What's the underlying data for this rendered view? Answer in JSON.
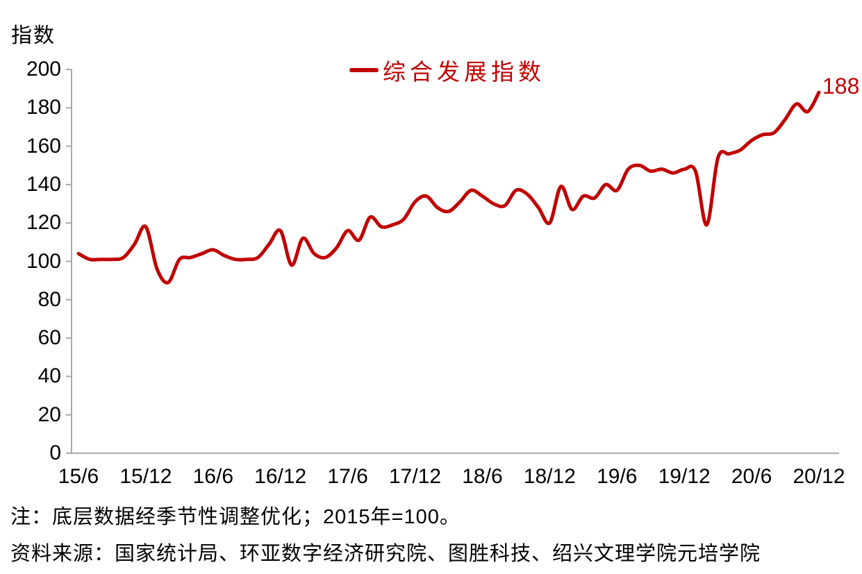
{
  "page": {
    "note": "注：底层数据经季节性调整优化；2015年=100。",
    "source": "资料来源：国家统计局、环亚数字经济研究院、图胜科技、绍兴文理学院元培学院"
  },
  "chart_data": {
    "type": "line",
    "title": "",
    "ylabel": "指数",
    "xlabel": "",
    "ylim": [
      0,
      200
    ],
    "ytick_step": 20,
    "yticks": [
      0,
      20,
      40,
      60,
      80,
      100,
      120,
      140,
      160,
      180,
      200
    ],
    "grid": false,
    "legend_position": "top-center",
    "x_tick_labels": [
      "15/6",
      "15/12",
      "16/6",
      "16/12",
      "17/6",
      "17/12",
      "18/6",
      "18/12",
      "19/6",
      "19/12",
      "20/6",
      "20/12"
    ],
    "x": [
      "15/6",
      "15/7",
      "15/8",
      "15/9",
      "15/10",
      "15/11",
      "15/12",
      "16/1",
      "16/2",
      "16/3",
      "16/4",
      "16/5",
      "16/6",
      "16/7",
      "16/8",
      "16/9",
      "16/10",
      "16/11",
      "16/12",
      "17/1",
      "17/2",
      "17/3",
      "17/4",
      "17/5",
      "17/6",
      "17/7",
      "17/8",
      "17/9",
      "17/10",
      "17/11",
      "17/12",
      "18/1",
      "18/2",
      "18/3",
      "18/4",
      "18/5",
      "18/6",
      "18/7",
      "18/8",
      "18/9",
      "18/10",
      "18/11",
      "18/12",
      "19/1",
      "19/2",
      "19/3",
      "19/4",
      "19/5",
      "19/6",
      "19/7",
      "19/8",
      "19/9",
      "19/10",
      "19/11",
      "19/12",
      "20/1",
      "20/2",
      "20/3",
      "20/4",
      "20/5",
      "20/6",
      "20/7",
      "20/8",
      "20/9",
      "20/10",
      "20/11",
      "20/12"
    ],
    "series": [
      {
        "name": "综合发展指数",
        "color": "#C00000",
        "values": [
          104,
          101,
          101,
          101,
          102,
          109,
          118,
          96,
          89,
          101,
          102,
          104,
          106,
          103,
          101,
          101,
          102,
          109,
          116,
          98,
          112,
          104,
          102,
          107,
          116,
          111,
          123,
          118,
          119,
          122,
          131,
          134,
          128,
          126,
          131,
          137,
          134,
          130,
          129,
          137,
          135,
          128,
          120,
          139,
          127,
          134,
          133,
          140,
          137,
          148,
          150,
          147,
          148,
          146,
          148,
          147,
          119,
          154,
          156,
          158,
          163,
          166,
          167,
          174,
          182,
          178,
          188
        ]
      }
    ],
    "end_label": "188",
    "axis_color": "#A9A9A9",
    "text_color": "#000000"
  }
}
